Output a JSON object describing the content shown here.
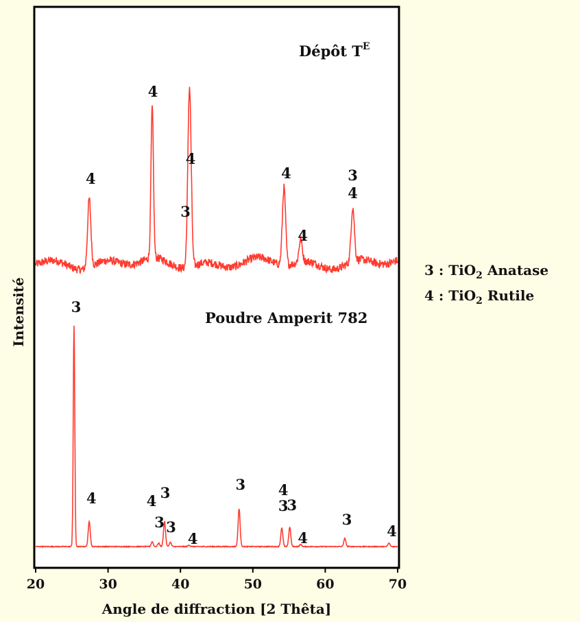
{
  "chart_data": {
    "type": "line",
    "xlabel": "Angle de diffraction [2 Thêta]",
    "ylabel": "Intensité",
    "xlim": [
      20,
      70
    ],
    "xticks": [
      20,
      30,
      40,
      50,
      60,
      70
    ],
    "grid": false,
    "line_color": "#ff3b2f",
    "series": [
      {
        "name": "Dépôt T",
        "name_superscript": "E",
        "baseline": 0.22,
        "noise": 0.06,
        "peaks": [
          {
            "x": 27.4,
            "height": 1.0
          },
          {
            "x": 36.1,
            "height": 2.2
          },
          {
            "x": 41.2,
            "height": 1.24
          },
          {
            "x": 41.3,
            "height": 1.45
          },
          {
            "x": 54.3,
            "height": 1.13
          },
          {
            "x": 56.6,
            "height": 0.33
          },
          {
            "x": 63.8,
            "height": 0.79
          }
        ],
        "labels": [
          {
            "x": 27.6,
            "text": "4",
            "y": 1.38
          },
          {
            "x": 36.2,
            "text": "4",
            "y": 2.65
          },
          {
            "x": 40.7,
            "text": "3",
            "y": 0.9
          },
          {
            "x": 41.4,
            "text": "4",
            "y": 1.67
          },
          {
            "x": 54.6,
            "text": "4",
            "y": 1.46
          },
          {
            "x": 56.9,
            "text": "4",
            "y": 0.55
          },
          {
            "x": 63.8,
            "text": "3",
            "y": 1.43
          },
          {
            "x": 63.8,
            "text": "4",
            "y": 1.17
          }
        ]
      },
      {
        "name": "Poudre Amperit 782",
        "baseline": 0.03,
        "noise": 0.006,
        "peaks": [
          {
            "x": 25.3,
            "height": 3.22
          },
          {
            "x": 27.4,
            "height": 0.37
          },
          {
            "x": 36.1,
            "height": 0.07
          },
          {
            "x": 37.0,
            "height": 0.05
          },
          {
            "x": 37.8,
            "height": 0.37
          },
          {
            "x": 38.6,
            "height": 0.06
          },
          {
            "x": 41.2,
            "height": 0.02
          },
          {
            "x": 48.1,
            "height": 0.55
          },
          {
            "x": 54.0,
            "height": 0.27
          },
          {
            "x": 55.1,
            "height": 0.28
          },
          {
            "x": 56.6,
            "height": 0.03
          },
          {
            "x": 62.7,
            "height": 0.12
          },
          {
            "x": 68.8,
            "height": 0.05
          }
        ],
        "labels": [
          {
            "x": 25.6,
            "text": "3",
            "y": 3.45
          },
          {
            "x": 27.7,
            "text": "4",
            "y": 0.66
          },
          {
            "x": 36.0,
            "text": "4",
            "y": 0.62
          },
          {
            "x": 37.9,
            "text": "3",
            "y": 0.74
          },
          {
            "x": 37.1,
            "text": "3",
            "y": 0.31
          },
          {
            "x": 38.7,
            "text": "3",
            "y": 0.24
          },
          {
            "x": 41.7,
            "text": "4",
            "y": 0.07
          },
          {
            "x": 48.3,
            "text": "3",
            "y": 0.86
          },
          {
            "x": 54.2,
            "text": "4",
            "y": 0.78
          },
          {
            "x": 54.2,
            "text": "3",
            "y": 0.55
          },
          {
            "x": 55.4,
            "text": "3",
            "y": 0.56
          },
          {
            "x": 56.9,
            "text": "4",
            "y": 0.08
          },
          {
            "x": 63.0,
            "text": "3",
            "y": 0.35
          },
          {
            "x": 69.2,
            "text": "4",
            "y": 0.18
          }
        ]
      }
    ],
    "legend": {
      "placement": "right",
      "items": [
        {
          "code": "3",
          "formula": "TiO",
          "subscript": "2",
          "phase": "Anatase"
        },
        {
          "code": "4",
          "formula": "TiO",
          "subscript": "2",
          "phase": "Rutile"
        }
      ]
    }
  }
}
